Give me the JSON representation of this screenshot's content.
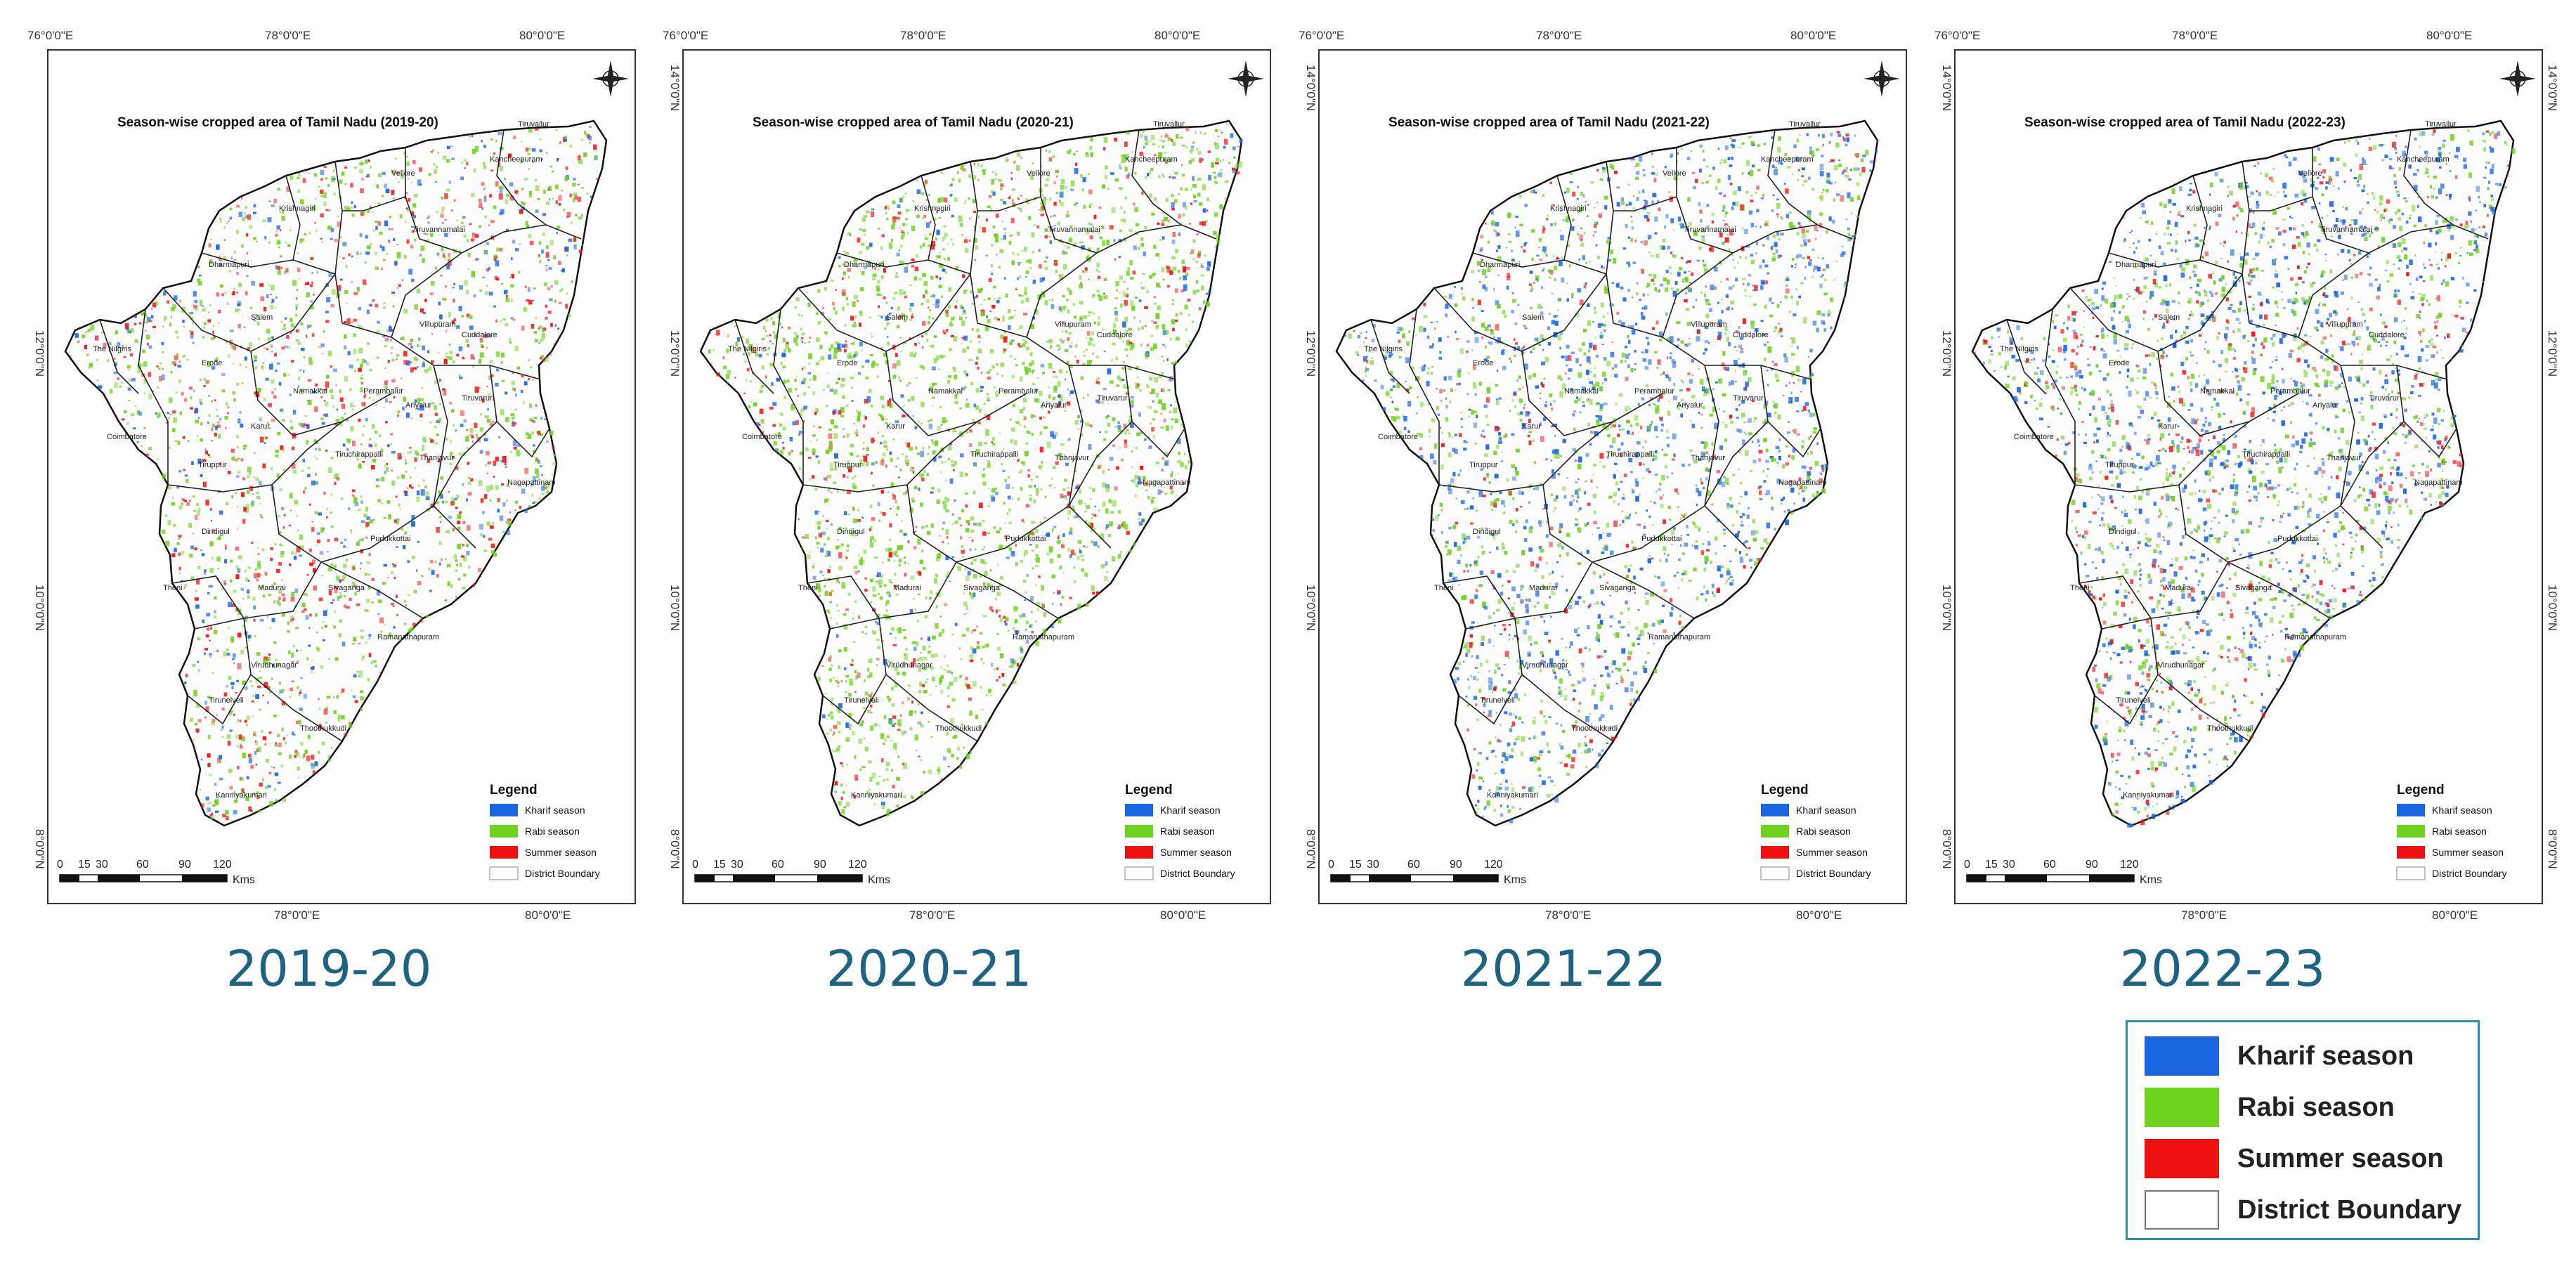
{
  "coord_labels": {
    "lon_76": "76°0'0\"E",
    "lon_78": "78°0'0\"E",
    "lon_80": "80°0'0\"E",
    "lat_14": "14°0'0\"N",
    "lat_12": "12°0'0\"N",
    "lat_10": "10°0'0\"N",
    "lat_8": "8°0'0\"N"
  },
  "map_legend": {
    "title": "Legend",
    "items": [
      "Kharif season",
      "Rabi season",
      "Summer season",
      "District Boundary"
    ]
  },
  "scale_bar": {
    "ticks": [
      "0",
      "15",
      "30",
      "60",
      "90",
      "120"
    ],
    "unit": "Kms"
  },
  "district_labels": [
    "The Nilgiris",
    "Coimbatore",
    "Tiruppur",
    "Erode",
    "Salem",
    "Dindigul",
    "Madurai",
    "Thanjavur",
    "Nagapattinam",
    "Tirunelveli",
    "Ramanathapuram",
    "Krishnagiri",
    "Tiruvannamalai",
    "Villupuram",
    "Kanniyakumari",
    "Thoothukkudi",
    "Pudukkottai",
    "Sivaganga",
    "Virudhunagar",
    "Theni",
    "Karur",
    "Namakkal",
    "Perambalur",
    "Ariyalur",
    "Cuddalore",
    "Tiruchirappalli",
    "Dharmapuri",
    "Vellore",
    "Kancheepuram",
    "Tiruvallur",
    "Tiruvarur"
  ],
  "panels": [
    {
      "title": "Season-wise cropped area of Tamil Nadu (2019-20)",
      "caption": "2019-20",
      "mix": [
        0.22,
        0.5,
        0.28
      ],
      "density": 0.55
    },
    {
      "title": "Season-wise cropped area of Tamil Nadu (2020-21)",
      "caption": "2020-21",
      "mix": [
        0.12,
        0.72,
        0.16
      ],
      "density": 0.65
    },
    {
      "title": "Season-wise cropped area of Tamil Nadu (2021-22)",
      "caption": "2021-22",
      "mix": [
        0.48,
        0.4,
        0.12
      ],
      "density": 0.6
    },
    {
      "title": "Season-wise cropped area of Tamil Nadu (2022-23)",
      "caption": "2022-23",
      "mix": [
        0.45,
        0.37,
        0.18
      ],
      "density": 0.65
    }
  ],
  "main_legend": {
    "items": [
      {
        "label": "Kharif season",
        "color": "#1a66e0"
      },
      {
        "label": "Rabi season",
        "color": "#6fd21e"
      },
      {
        "label": "Summer season",
        "color": "#ee1111"
      },
      {
        "label": "District Boundary",
        "color": "#ffffff"
      }
    ]
  },
  "colors": {
    "kharif": "#1a66e0",
    "rabi": "#6fd21e",
    "summer": "#ee1111",
    "boundary": "#222222",
    "caption": "#1f6383"
  }
}
